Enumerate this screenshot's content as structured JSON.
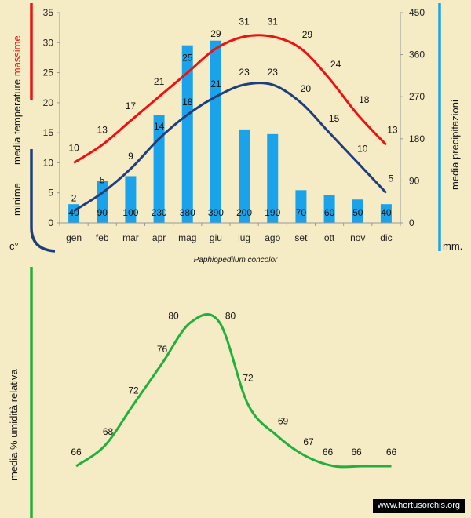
{
  "subtitle": "Paphiopedilum concolor",
  "watermark": "www.hortusorchis.org",
  "chart_data": [
    {
      "type": "bar+line",
      "categories": [
        "gen",
        "feb",
        "mar",
        "apr",
        "mag",
        "giu",
        "lug",
        "ago",
        "set",
        "ott",
        "nov",
        "dic"
      ],
      "series": [
        {
          "name": "massime",
          "kind": "line",
          "axis": "left",
          "color": "#ee1111",
          "values": [
            10,
            13,
            17,
            21,
            25,
            29,
            31,
            31,
            29,
            24,
            18,
            13
          ]
        },
        {
          "name": "minime",
          "kind": "line",
          "axis": "left",
          "color": "#1f3e7a",
          "values": [
            2,
            5,
            9,
            14,
            18,
            21,
            23,
            23,
            20,
            15,
            10,
            5
          ]
        },
        {
          "name": "precipitazioni",
          "kind": "bar",
          "axis": "right",
          "color": "#1aa3ea",
          "values": [
            40,
            90,
            100,
            230,
            380,
            390,
            200,
            190,
            70,
            60,
            50,
            40
          ]
        }
      ],
      "ylim_left": [
        0,
        35
      ],
      "yticks_left": [
        0,
        5,
        10,
        15,
        20,
        25,
        30,
        35
      ],
      "ylim_right": [
        0,
        450
      ],
      "yticks_right": [
        0,
        90,
        180,
        270,
        360,
        450
      ],
      "ylabel_left": {
        "prefix": "media  temperature",
        "max": "massime",
        "min": "minime",
        "unit": "c°"
      },
      "ylabel_right": {
        "text": "media  precipitazioni",
        "unit": "mm."
      },
      "accent_colors": {
        "red": "#ee1111",
        "navy": "#1f3e7a",
        "blue": "#1aa3ea"
      }
    },
    {
      "type": "line",
      "categories": [
        "gen",
        "feb",
        "mar",
        "apr",
        "mag",
        "giu",
        "lug",
        "ago",
        "set",
        "ott",
        "nov",
        "dic"
      ],
      "series": [
        {
          "name": "umidità relativa",
          "color": "#22b03c",
          "values": [
            66,
            68,
            72,
            76,
            80,
            80,
            72,
            69,
            67,
            66,
            66,
            66
          ]
        }
      ],
      "ylabel": "media %  umidità relativa",
      "accent_colors": {
        "green": "#22b03c"
      }
    }
  ]
}
